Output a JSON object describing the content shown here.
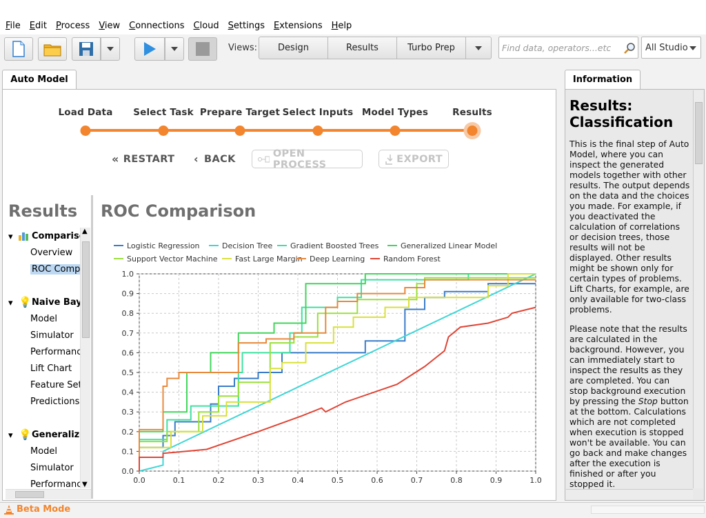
{
  "menu": [
    "File",
    "Edit",
    "Process",
    "View",
    "Connections",
    "Cloud",
    "Settings",
    "Extensions",
    "Help"
  ],
  "toolbar": {
    "views_label": "Views:",
    "views": [
      "Design",
      "Results",
      "Turbo Prep"
    ],
    "search_placeholder": "Find data, operators...etc",
    "scope": "All Studio"
  },
  "tabs": {
    "main": "Auto Model",
    "info": "Information"
  },
  "steps": [
    "Load Data",
    "Select Task",
    "Prepare Target",
    "Select Inputs",
    "Model Types",
    "Results"
  ],
  "nav": {
    "restart": "RESTART",
    "back": "BACK",
    "open_process": "OPEN PROCESS",
    "export": "EXPORT"
  },
  "results_title": "Results",
  "tree": {
    "comparison": {
      "label": "Comparison",
      "items": [
        "Overview",
        "ROC Comparison"
      ]
    },
    "naive_bayes": {
      "label": "Naive Bayes",
      "items": [
        "Model",
        "Simulator",
        "Performance",
        "Lift Chart",
        "Feature Sets",
        "Predictions"
      ]
    },
    "generalized": {
      "label": "Generalized Linear Model",
      "items": [
        "Model",
        "Simulator",
        "Performance"
      ]
    }
  },
  "roc_title": "ROC Comparison",
  "info": {
    "title": "Results: Classification",
    "p1": "This is the final step of Auto Model, where you can inspect the generated models together with other results. The output depends on the data and the choices you made. For example, if you deactivated the calculation of correlations or decision trees, those results will not be displayed. Other results might be shown only for certain types of problems. Lift Charts, for example, are only available for two-class problems.",
    "p2a": "Please note that the results are calculated in the background. However, you can immediately start to inspect the results as they are completed. You can stop background execution by pressing the ",
    "p2_em": "Stop",
    "p2b": " button at the bottom. Calculations which are not completed when execution is stopped won't be available. You can go back and make changes after the execution is finished or after you stopped it."
  },
  "status": {
    "beta": "Beta Mode"
  },
  "colors": {
    "accent": "#f2852d"
  },
  "chart_data": {
    "type": "line",
    "title": "",
    "xlabel": "",
    "ylabel": "",
    "xlim": [
      0,
      1
    ],
    "ylim": [
      0,
      1
    ],
    "xticks": [
      "0.0",
      "0.1",
      "0.2",
      "0.3",
      "0.4",
      "0.5",
      "0.6",
      "0.7",
      "0.8",
      "0.9",
      "1.0"
    ],
    "yticks": [
      "0.0",
      "0.1",
      "0.2",
      "0.3",
      "0.4",
      "0.5",
      "0.6",
      "0.7",
      "0.8",
      "0.9",
      "1.0"
    ],
    "grid": true,
    "legend": "top",
    "series": [
      {
        "name": "Logistic Regression",
        "color": "#3a7bc8",
        "points": [
          [
            0,
            0
          ],
          [
            0,
            0.12
          ],
          [
            0.06,
            0.12
          ],
          [
            0.06,
            0.18
          ],
          [
            0.09,
            0.18
          ],
          [
            0.09,
            0.25
          ],
          [
            0.18,
            0.25
          ],
          [
            0.18,
            0.34
          ],
          [
            0.2,
            0.34
          ],
          [
            0.2,
            0.43
          ],
          [
            0.24,
            0.43
          ],
          [
            0.24,
            0.47
          ],
          [
            0.3,
            0.47
          ],
          [
            0.3,
            0.5
          ],
          [
            0.36,
            0.5
          ],
          [
            0.36,
            0.6
          ],
          [
            0.57,
            0.6
          ],
          [
            0.57,
            0.66
          ],
          [
            0.67,
            0.66
          ],
          [
            0.67,
            0.82
          ],
          [
            0.72,
            0.82
          ],
          [
            0.72,
            0.88
          ],
          [
            0.77,
            0.88
          ],
          [
            0.77,
            0.91
          ],
          [
            0.88,
            0.91
          ],
          [
            0.88,
            0.95
          ],
          [
            1,
            0.95
          ]
        ]
      },
      {
        "name": "Decision Tree",
        "color": "#3fd6d6",
        "points": [
          [
            0,
            0
          ],
          [
            0.06,
            0.03
          ],
          [
            0.06,
            0.1
          ],
          [
            1,
            1
          ]
        ]
      },
      {
        "name": "Gradient Boosted Trees",
        "color": "#3de0a0",
        "points": [
          [
            0,
            0
          ],
          [
            0,
            0.16
          ],
          [
            0.07,
            0.16
          ],
          [
            0.07,
            0.26
          ],
          [
            0.13,
            0.26
          ],
          [
            0.13,
            0.33
          ],
          [
            0.25,
            0.33
          ],
          [
            0.25,
            0.5
          ],
          [
            0.26,
            0.5
          ],
          [
            0.26,
            0.6
          ],
          [
            0.38,
            0.6
          ],
          [
            0.38,
            0.7
          ],
          [
            0.41,
            0.7
          ],
          [
            0.41,
            0.83
          ],
          [
            0.5,
            0.83
          ],
          [
            0.5,
            0.88
          ],
          [
            0.56,
            0.88
          ],
          [
            0.56,
            0.97
          ],
          [
            0.83,
            0.97
          ],
          [
            0.83,
            1
          ],
          [
            1,
            1
          ]
        ]
      },
      {
        "name": "Generalized Linear Model",
        "color": "#42d65a",
        "points": [
          [
            0,
            0
          ],
          [
            0,
            0.2
          ],
          [
            0.06,
            0.2
          ],
          [
            0.06,
            0.3
          ],
          [
            0.12,
            0.3
          ],
          [
            0.12,
            0.5
          ],
          [
            0.18,
            0.5
          ],
          [
            0.18,
            0.6
          ],
          [
            0.25,
            0.6
          ],
          [
            0.25,
            0.7
          ],
          [
            0.34,
            0.7
          ],
          [
            0.34,
            0.75
          ],
          [
            0.42,
            0.75
          ],
          [
            0.42,
            0.95
          ],
          [
            0.57,
            0.95
          ],
          [
            0.57,
            1
          ],
          [
            1,
            1
          ]
        ]
      },
      {
        "name": "Support Vector Machine",
        "color": "#9adf3a",
        "points": [
          [
            0,
            0
          ],
          [
            0,
            0.15
          ],
          [
            0.07,
            0.15
          ],
          [
            0.07,
            0.2
          ],
          [
            0.15,
            0.2
          ],
          [
            0.15,
            0.3
          ],
          [
            0.2,
            0.3
          ],
          [
            0.2,
            0.38
          ],
          [
            0.25,
            0.38
          ],
          [
            0.25,
            0.45
          ],
          [
            0.33,
            0.45
          ],
          [
            0.33,
            0.65
          ],
          [
            0.39,
            0.65
          ],
          [
            0.39,
            0.68
          ],
          [
            0.45,
            0.68
          ],
          [
            0.45,
            0.8
          ],
          [
            0.55,
            0.8
          ],
          [
            0.55,
            0.87
          ],
          [
            0.7,
            0.87
          ],
          [
            0.7,
            0.95
          ],
          [
            0.72,
            0.95
          ],
          [
            0.72,
            0.98
          ],
          [
            1,
            0.98
          ]
        ]
      },
      {
        "name": "Fast Large Margin",
        "color": "#d9e03a",
        "points": [
          [
            0,
            0
          ],
          [
            0,
            0.12
          ],
          [
            0.08,
            0.12
          ],
          [
            0.08,
            0.2
          ],
          [
            0.16,
            0.2
          ],
          [
            0.16,
            0.28
          ],
          [
            0.22,
            0.28
          ],
          [
            0.22,
            0.35
          ],
          [
            0.33,
            0.35
          ],
          [
            0.33,
            0.52
          ],
          [
            0.36,
            0.52
          ],
          [
            0.36,
            0.55
          ],
          [
            0.42,
            0.55
          ],
          [
            0.42,
            0.65
          ],
          [
            0.49,
            0.65
          ],
          [
            0.49,
            0.73
          ],
          [
            0.54,
            0.73
          ],
          [
            0.54,
            0.78
          ],
          [
            0.62,
            0.78
          ],
          [
            0.62,
            0.83
          ],
          [
            0.68,
            0.83
          ],
          [
            0.68,
            0.88
          ],
          [
            0.73,
            0.88
          ],
          [
            0.73,
            0.88
          ],
          [
            0.88,
            0.88
          ],
          [
            0.88,
            0.94
          ],
          [
            0.93,
            0.94
          ],
          [
            0.93,
            1
          ],
          [
            1,
            1
          ]
        ]
      },
      {
        "name": "Deep Learning",
        "color": "#e8883a",
        "points": [
          [
            0,
            0
          ],
          [
            0,
            0.21
          ],
          [
            0.06,
            0.21
          ],
          [
            0.06,
            0.43
          ],
          [
            0.07,
            0.43
          ],
          [
            0.07,
            0.47
          ],
          [
            0.1,
            0.47
          ],
          [
            0.1,
            0.5
          ],
          [
            0.25,
            0.5
          ],
          [
            0.25,
            0.65
          ],
          [
            0.32,
            0.65
          ],
          [
            0.32,
            0.67
          ],
          [
            0.39,
            0.67
          ],
          [
            0.39,
            0.7
          ],
          [
            0.47,
            0.7
          ],
          [
            0.47,
            0.83
          ],
          [
            0.5,
            0.83
          ],
          [
            0.5,
            0.86
          ],
          [
            0.55,
            0.86
          ],
          [
            0.55,
            0.9
          ],
          [
            0.67,
            0.9
          ],
          [
            0.67,
            0.93
          ],
          [
            0.72,
            0.93
          ],
          [
            0.72,
            0.97
          ],
          [
            1,
            0.97
          ]
        ]
      },
      {
        "name": "Random Forest",
        "color": "#e04434",
        "points": [
          [
            0,
            0
          ],
          [
            0,
            0.07
          ],
          [
            0.06,
            0.07
          ],
          [
            0.06,
            0.09
          ],
          [
            0.17,
            0.11
          ],
          [
            0.3,
            0.2
          ],
          [
            0.41,
            0.28
          ],
          [
            0.46,
            0.32
          ],
          [
            0.47,
            0.3
          ],
          [
            0.52,
            0.35
          ],
          [
            0.65,
            0.44
          ],
          [
            0.72,
            0.53
          ],
          [
            0.77,
            0.61
          ],
          [
            0.78,
            0.68
          ],
          [
            0.81,
            0.73
          ],
          [
            0.88,
            0.75
          ],
          [
            0.93,
            0.78
          ],
          [
            0.94,
            0.8
          ],
          [
            1,
            0.83
          ],
          [
            1,
            0.83
          ]
        ]
      }
    ]
  }
}
